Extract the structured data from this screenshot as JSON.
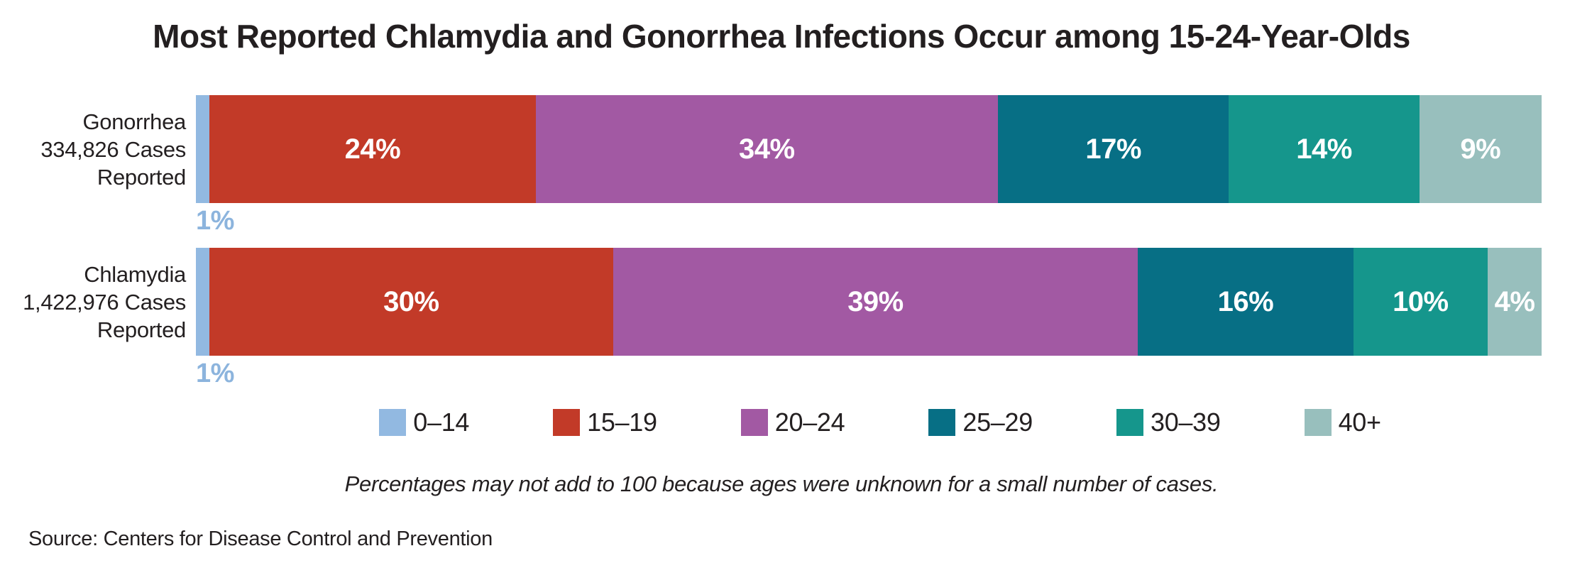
{
  "title": "Most Reported Chlamydia and Gonorrhea Infections Occur among 15-24-Year-Olds",
  "footnote": "Percentages may not add to 100 because ages were unknown for a small number of cases.",
  "source": "Source: Centers for Disease Control and Prevention",
  "accent_colors": {
    "outside_label_blue": "#8cb4dd",
    "text_dark": "#231f20",
    "segment_label_white": "#ffffff"
  },
  "chart_data": {
    "type": "bar",
    "orientation": "horizontal",
    "stacked": true,
    "unit": "percent",
    "categories": [
      "0–14",
      "15–19",
      "20–24",
      "25–29",
      "30–39",
      "40+"
    ],
    "colors": [
      "#92b9e1",
      "#c23a28",
      "#a259a3",
      "#076f85",
      "#15968c",
      "#98bfbd"
    ],
    "legend_position": "bottom",
    "grid": false,
    "rows": [
      {
        "label_lines": [
          "Gonorrhea",
          "334,826 Cases",
          "Reported"
        ],
        "values": [
          1,
          24,
          34,
          17,
          14,
          9
        ],
        "labels_inside": [
          "",
          "24%",
          "34%",
          "17%",
          "14%",
          "9%"
        ],
        "label_below": "1%"
      },
      {
        "label_lines": [
          "Chlamydia",
          "1,422,976 Cases",
          "Reported"
        ],
        "values": [
          1,
          30,
          39,
          16,
          10,
          4
        ],
        "labels_inside": [
          "",
          "30%",
          "39%",
          "16%",
          "10%",
          "4%"
        ],
        "label_below": "1%"
      }
    ]
  }
}
